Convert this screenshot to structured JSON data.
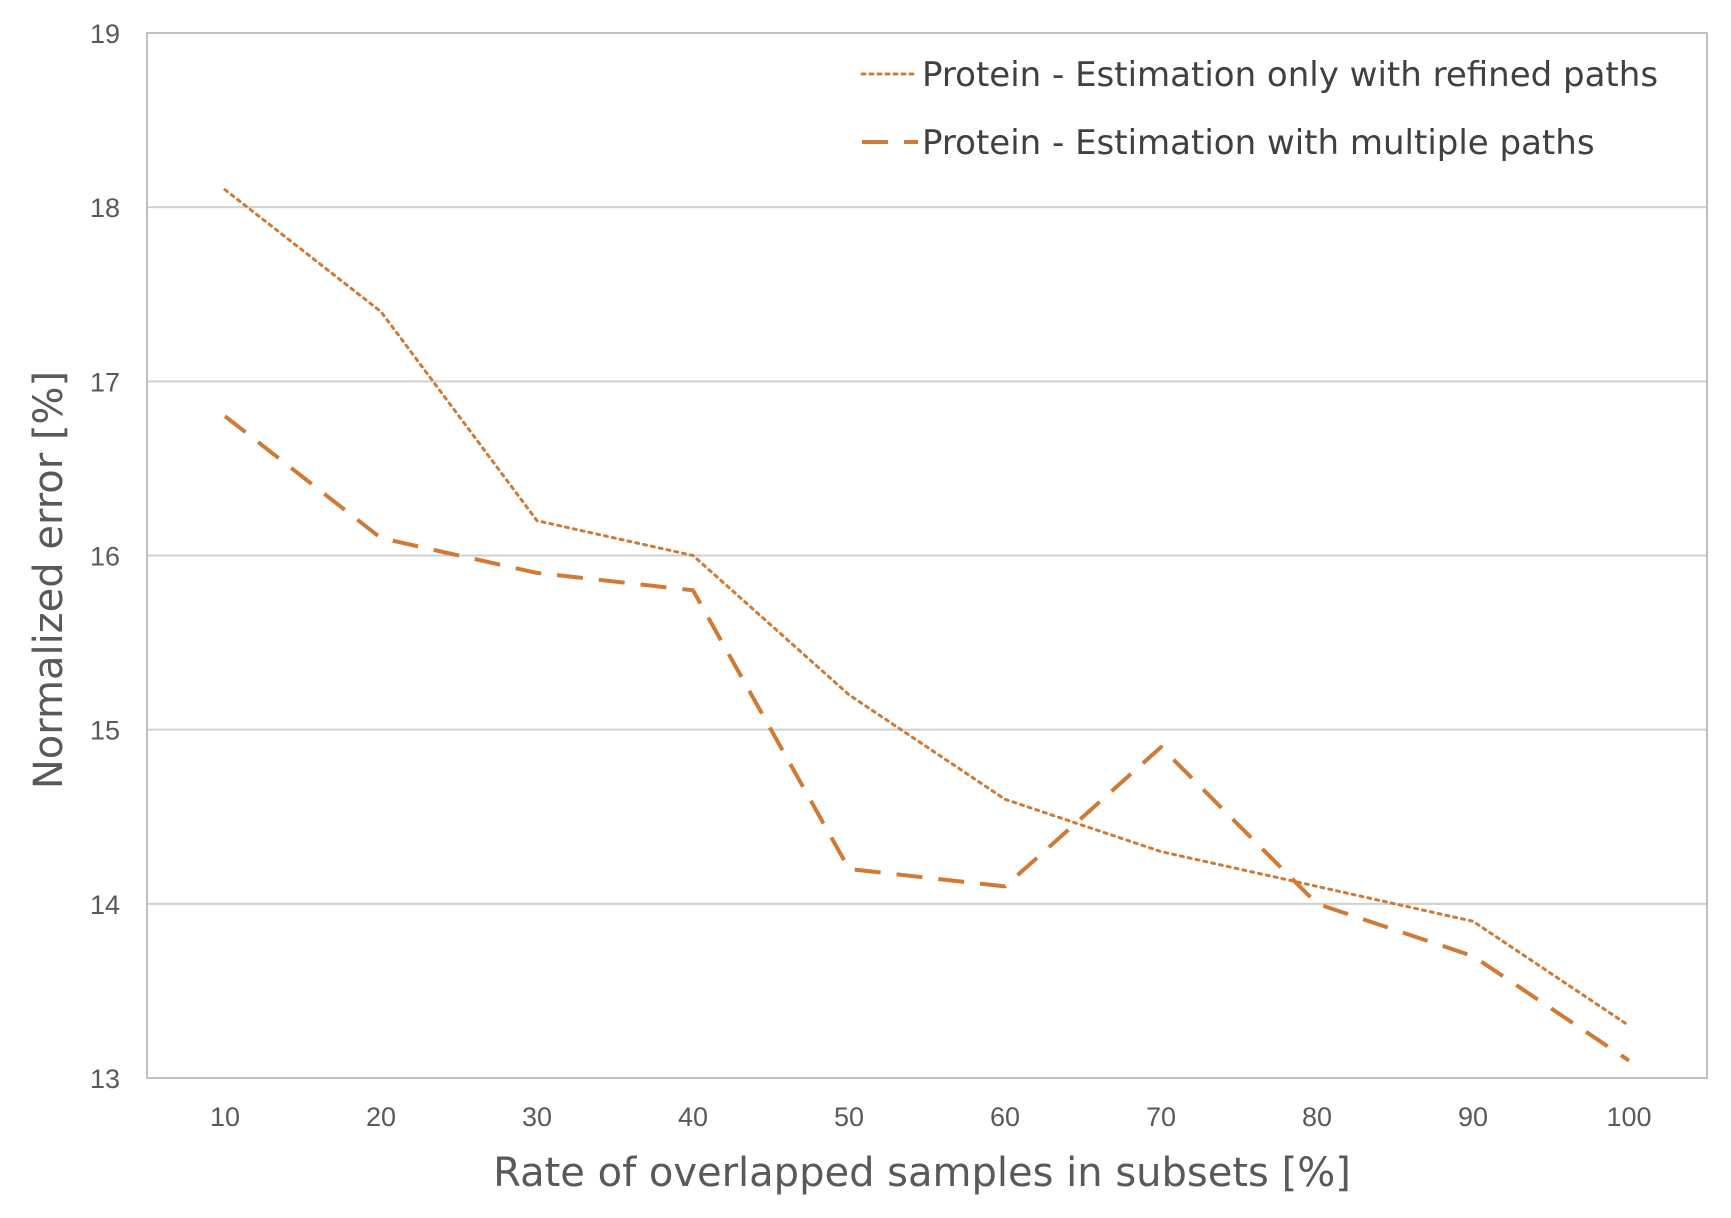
{
  "chart_data": {
    "type": "line",
    "title": "",
    "xlabel": "Rate of overlapped samples in subsets [%]",
    "ylabel": "Normalized error [%]",
    "categories": [
      "10",
      "20",
      "30",
      "40",
      "50",
      "60",
      "70",
      "80",
      "90",
      "100"
    ],
    "ylim": [
      13,
      19
    ],
    "yticks": [
      "13",
      "14",
      "15",
      "16",
      "17",
      "18",
      "19"
    ],
    "grid": true,
    "legend_position": "top-right",
    "series": [
      {
        "name": "Protein - Estimation only with refined paths",
        "style": "dotted",
        "color": "#D07A35",
        "values": [
          18.1,
          17.4,
          16.2,
          16.0,
          15.2,
          14.6,
          14.3,
          14.1,
          13.9,
          13.3
        ]
      },
      {
        "name": "Protein - Estimation with multiple paths",
        "style": "dashed",
        "color": "#D07A35",
        "values": [
          16.8,
          16.1,
          15.9,
          15.8,
          14.2,
          14.1,
          14.9,
          14.0,
          13.7,
          13.1
        ]
      }
    ]
  },
  "colors": {
    "grid": "#d0d0d0",
    "axis": "#bfbfbf",
    "text": "#595959",
    "series": "#D07A35"
  }
}
